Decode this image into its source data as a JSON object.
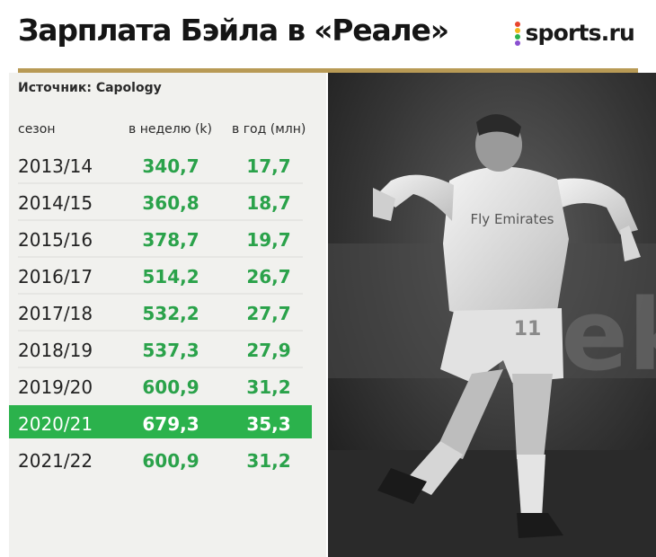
{
  "title": "Зарплата Бэйла в «Реале»",
  "brand": {
    "name": "sports.ru",
    "accent": "#b89a55",
    "highlight": "#2bb24c",
    "value_color": "#2aa24a"
  },
  "source": "Источник: Capology",
  "chart_data": {
    "type": "table",
    "columns": [
      "сезон",
      "в неделю (k)",
      "в год (млн)"
    ],
    "rows": [
      {
        "season": "2013/14",
        "weekly": "340,7",
        "yearly": "17,7"
      },
      {
        "season": "2014/15",
        "weekly": "360,8",
        "yearly": "18,7"
      },
      {
        "season": "2015/16",
        "weekly": "378,7",
        "yearly": "19,7"
      },
      {
        "season": "2016/17",
        "weekly": "514,2",
        "yearly": "26,7"
      },
      {
        "season": "2017/18",
        "weekly": "532,2",
        "yearly": "27,7"
      },
      {
        "season": "2018/19",
        "weekly": "537,3",
        "yearly": "27,9"
      },
      {
        "season": "2019/20",
        "weekly": "600,9",
        "yearly": "31,2"
      },
      {
        "season": "2020/21",
        "weekly": "679,3",
        "yearly": "35,3",
        "highlight": true
      },
      {
        "season": "2021/22",
        "weekly": "600,9",
        "yearly": "31,2"
      }
    ]
  },
  "photo": {
    "shirt_sponsor": "Fly Emirates",
    "shirt_number": "11",
    "board_text": "neke"
  }
}
